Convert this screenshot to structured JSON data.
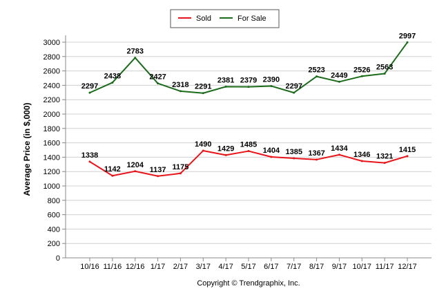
{
  "chart_data": {
    "type": "line",
    "categories": [
      "10/16",
      "11/16",
      "12/16",
      "1/17",
      "2/17",
      "3/17",
      "4/17",
      "5/17",
      "6/17",
      "7/17",
      "8/17",
      "9/17",
      "10/17",
      "11/17",
      "12/17"
    ],
    "series": [
      {
        "name": "Sold",
        "color": "#e8141a",
        "values": [
          1338,
          1142,
          1204,
          1137,
          1175,
          1490,
          1429,
          1485,
          1404,
          1385,
          1367,
          1434,
          1346,
          1321,
          1415
        ]
      },
      {
        "name": "For Sale",
        "color": "#1b6b1b",
        "values": [
          2297,
          2438,
          2783,
          2427,
          2318,
          2291,
          2381,
          2379,
          2390,
          2297,
          2523,
          2449,
          2526,
          2563,
          2997
        ]
      }
    ],
    "ylabel": "Average Price (in $,000)",
    "ylim": [
      0,
      3000
    ],
    "ytick_step": 200,
    "grid": true,
    "legend_position": "top-center",
    "footer": "Copyright © Trendgraphix, Inc."
  }
}
